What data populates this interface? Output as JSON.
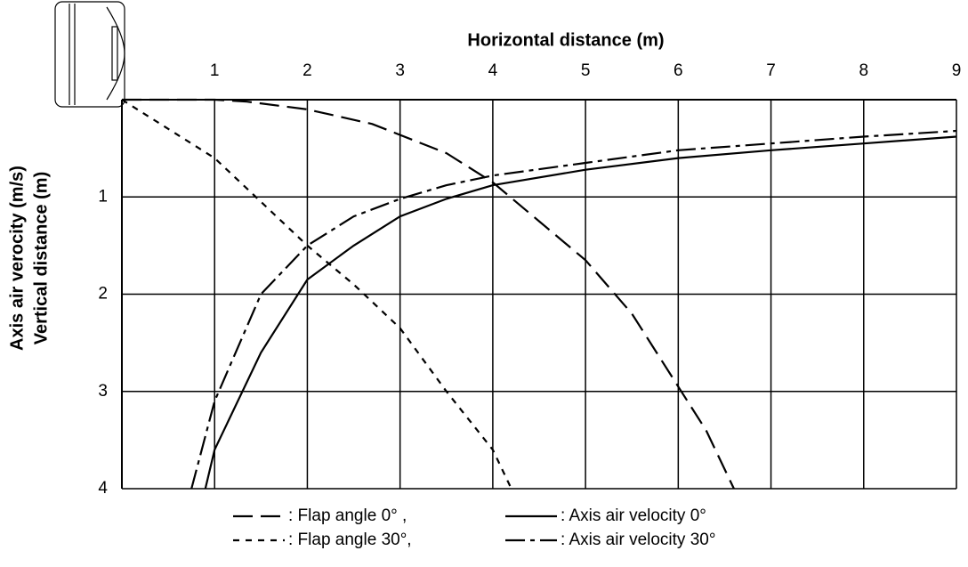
{
  "chart_data": {
    "type": "line",
    "xlabel": "Horizontal distance (m)",
    "ylabel": [
      "Axis air verocity (m/s)",
      "Vertical distance (m)"
    ],
    "xlim": [
      0,
      9
    ],
    "ylim": [
      0,
      4
    ],
    "y_inverted": true,
    "x_axis_position": "top",
    "xticks": [
      1,
      2,
      3,
      4,
      5,
      6,
      7,
      8,
      9
    ],
    "yticks": [
      1,
      2,
      3,
      4
    ],
    "grid": true,
    "series": [
      {
        "name": ": Flap angle 0° ,",
        "color": "#000000",
        "dash": "long",
        "x": [
          0,
          1,
          1.35,
          2,
          2.7,
          3.5,
          4,
          4.5,
          5,
          5.5,
          6,
          6.3,
          6.6
        ],
        "values": [
          0,
          0,
          0.02,
          0.1,
          0.25,
          0.55,
          0.85,
          1.25,
          1.65,
          2.2,
          2.95,
          3.4,
          4.0
        ]
      },
      {
        "name": ": Flap angle 30°,",
        "color": "#000000",
        "dash": "short",
        "x": [
          0,
          1,
          1.5,
          2,
          2.5,
          3,
          3.5,
          4,
          4.2
        ],
        "values": [
          0,
          0.6,
          1.05,
          1.5,
          1.9,
          2.35,
          3.0,
          3.6,
          4.0
        ]
      },
      {
        "name": ": Axis air velocity 0°",
        "color": "#000000",
        "dash": "solid",
        "x": [
          0.9,
          1,
          1.5,
          2,
          2.5,
          3,
          3.5,
          4,
          5,
          6,
          7,
          8,
          9
        ],
        "values": [
          4.0,
          3.6,
          2.6,
          1.85,
          1.5,
          1.2,
          1.02,
          0.88,
          0.72,
          0.6,
          0.52,
          0.45,
          0.38
        ]
      },
      {
        "name": ": Axis air velocity 30°",
        "color": "#000000",
        "dash": "dashdot",
        "x": [
          0.75,
          1,
          1.5,
          2,
          2.5,
          3,
          3.5,
          4,
          5,
          6,
          7,
          8,
          9
        ],
        "values": [
          4.0,
          3.1,
          2.0,
          1.5,
          1.2,
          1.02,
          0.88,
          0.78,
          0.65,
          0.52,
          0.45,
          0.38,
          0.32
        ]
      }
    ]
  }
}
